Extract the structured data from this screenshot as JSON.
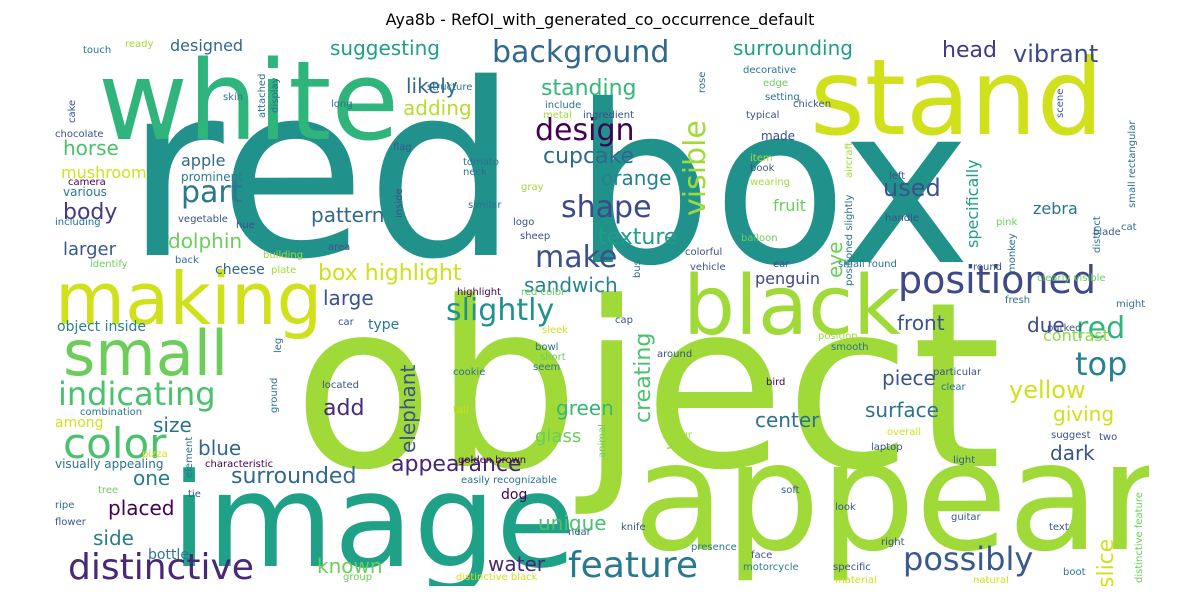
{
  "title": "Aya8b - RefOI_with_generated_co_occurrence_default",
  "words": [
    {
      "text": "red",
      "color": "#21918c"
    },
    {
      "text": "box",
      "color": "#21918c"
    },
    {
      "text": "object",
      "color": "#a0da39"
    },
    {
      "text": "image",
      "color": "#1fa187"
    },
    {
      "text": "appear",
      "color": "#a0da39"
    },
    {
      "text": "white",
      "color": "#2fb47c"
    },
    {
      "text": "stand",
      "color": "#d0e11c"
    },
    {
      "text": "black",
      "color": "#a0da39"
    },
    {
      "text": "making",
      "color": "#d0e11c"
    },
    {
      "text": "small",
      "color": "#6ccd5a"
    },
    {
      "text": "color",
      "color": "#4ac16d"
    },
    {
      "text": "indicating",
      "color": "#4ac16d"
    },
    {
      "text": "distinctive",
      "color": "#482878"
    },
    {
      "text": "positioned",
      "color": "#3e4989"
    },
    {
      "text": "possibly",
      "color": "#38598c"
    },
    {
      "text": "feature",
      "color": "#2a788e"
    },
    {
      "text": "appearance",
      "color": "#482475"
    },
    {
      "text": "background",
      "color": "#31688e"
    },
    {
      "text": "surrounded",
      "color": "#31688e"
    },
    {
      "text": "design",
      "color": "#440154"
    },
    {
      "text": "shape",
      "color": "#3e4989"
    },
    {
      "text": "slightly",
      "color": "#21918c"
    },
    {
      "text": "make",
      "color": "#3b528b"
    },
    {
      "text": "visible",
      "color": "#a0da39"
    },
    {
      "text": "top",
      "color": "#26828e"
    },
    {
      "text": "red",
      "color": "#2fb47c"
    },
    {
      "text": "part",
      "color": "#2a788e"
    },
    {
      "text": "pattern",
      "color": "#31688e"
    },
    {
      "text": "box highlight",
      "color": "#d0e11c"
    },
    {
      "text": "texture",
      "color": "#1f9e89"
    },
    {
      "text": "cupcake",
      "color": "#31688e"
    },
    {
      "text": "standing",
      "color": "#35b779"
    },
    {
      "text": "adding",
      "color": "#b5de2b"
    },
    {
      "text": "likely",
      "color": "#31688e"
    },
    {
      "text": "suggesting",
      "color": "#1f9e89"
    },
    {
      "text": "surrounding",
      "color": "#1f9e89"
    },
    {
      "text": "vibrant",
      "color": "#3e4989"
    },
    {
      "text": "head",
      "color": "#443983"
    },
    {
      "text": "orange",
      "color": "#26828e"
    },
    {
      "text": "body",
      "color": "#443983"
    },
    {
      "text": "horse",
      "color": "#4ac16d"
    },
    {
      "text": "dolphin",
      "color": "#6ccd5a"
    },
    {
      "text": "larger",
      "color": "#38598c"
    },
    {
      "text": "large",
      "color": "#3b528b"
    },
    {
      "text": "sandwich",
      "color": "#26828e"
    },
    {
      "text": "creating",
      "color": "#4ac16d"
    },
    {
      "text": "elephant",
      "color": "#3b528b"
    },
    {
      "text": "green",
      "color": "#35b779"
    },
    {
      "text": "glass",
      "color": "#6ccd5a"
    },
    {
      "text": "within",
      "color": "#a0da39"
    },
    {
      "text": "add",
      "color": "#482878"
    },
    {
      "text": "size",
      "color": "#2c728e"
    },
    {
      "text": "blue",
      "color": "#31688e"
    },
    {
      "text": "one",
      "color": "#287c8e"
    },
    {
      "text": "placed",
      "color": "#440154"
    },
    {
      "text": "side",
      "color": "#287c8e"
    },
    {
      "text": "known",
      "color": "#6ccd5a"
    },
    {
      "text": "water",
      "color": "#482475"
    },
    {
      "text": "unique",
      "color": "#4ac16d"
    },
    {
      "text": "front",
      "color": "#3b528b"
    },
    {
      "text": "due",
      "color": "#3e4989"
    },
    {
      "text": "piece",
      "color": "#3b528b"
    },
    {
      "text": "surface",
      "color": "#2c728e"
    },
    {
      "text": "yellow",
      "color": "#d0e11c"
    },
    {
      "text": "giving",
      "color": "#d0e11c"
    },
    {
      "text": "center",
      "color": "#2c728e"
    },
    {
      "text": "dark",
      "color": "#3b528b"
    },
    {
      "text": "slice",
      "color": "#d0e11c"
    },
    {
      "text": "used",
      "color": "#3b528b"
    },
    {
      "text": "eye",
      "color": "#6ccd5a"
    },
    {
      "text": "contrast",
      "color": "#90d743"
    },
    {
      "text": "designed",
      "color": "#31688e"
    },
    {
      "text": "apple",
      "color": "#31688e"
    },
    {
      "text": "prominent",
      "color": "#287c8e"
    },
    {
      "text": "mushroom",
      "color": "#d0e11c"
    },
    {
      "text": "various",
      "color": "#2a788e"
    },
    {
      "text": "cheese",
      "color": "#31688e"
    },
    {
      "text": "object inside",
      "color": "#26828e"
    },
    {
      "text": "type",
      "color": "#2a788e"
    },
    {
      "text": "penguin",
      "color": "#414487"
    },
    {
      "text": "fruit",
      "color": "#6ccd5a"
    },
    {
      "text": "specifically",
      "color": "#1f9e89"
    },
    {
      "text": "zebra",
      "color": "#2c728e"
    },
    {
      "text": "among",
      "color": "#d0e11c"
    },
    {
      "text": "visually appealing",
      "color": "#2c728e"
    },
    {
      "text": "combination",
      "color": "#2c728e"
    },
    {
      "text": "bottle",
      "color": "#2a788e"
    },
    {
      "text": "dog",
      "color": "#440154"
    },
    {
      "text": "golden brown",
      "color": "#440154"
    },
    {
      "text": "cookie",
      "color": "#2c728e"
    },
    {
      "text": "bowl",
      "color": "#2c728e"
    },
    {
      "text": "easily recognizable",
      "color": "#2c728e"
    },
    {
      "text": "knife",
      "color": "#38598c"
    },
    {
      "text": "presence",
      "color": "#2a788e"
    },
    {
      "text": "motorcycle",
      "color": "#287c8e"
    },
    {
      "text": "laptop",
      "color": "#3b528b"
    },
    {
      "text": "soft",
      "color": "#38598c"
    },
    {
      "text": "light",
      "color": "#38598c"
    },
    {
      "text": "guitar",
      "color": "#38598c"
    },
    {
      "text": "look",
      "color": "#38598c"
    },
    {
      "text": "right",
      "color": "#3b528b"
    },
    {
      "text": "natural",
      "color": "#d0e11c"
    },
    {
      "text": "text",
      "color": "#3b528b"
    },
    {
      "text": "boot",
      "color": "#2a788e"
    },
    {
      "text": "touch",
      "color": "#2a788e"
    },
    {
      "text": "ready",
      "color": "#a0da39"
    },
    {
      "text": "attached",
      "color": "#2c728e"
    },
    {
      "text": "display",
      "color": "#31688e"
    },
    {
      "text": "skin",
      "color": "#2c728e"
    },
    {
      "text": "cake",
      "color": "#3b528b"
    },
    {
      "text": "chocolate",
      "color": "#3b528b"
    },
    {
      "text": "camera",
      "color": "#440154"
    },
    {
      "text": "long",
      "color": "#2c728e"
    },
    {
      "text": "flag",
      "color": "#38598c"
    },
    {
      "text": "area",
      "color": "#3b528b"
    },
    {
      "text": "inside",
      "color": "#3b528b"
    },
    {
      "text": "structure",
      "color": "#2c728e"
    },
    {
      "text": "include",
      "color": "#2c728e"
    },
    {
      "text": "metal",
      "color": "#a0da39"
    },
    {
      "text": "ingredient",
      "color": "#3b528b"
    },
    {
      "text": "rose",
      "color": "#2c728e"
    },
    {
      "text": "decorative",
      "color": "#2c728e"
    },
    {
      "text": "edge",
      "color": "#6ccd5a"
    },
    {
      "text": "setting",
      "color": "#2c728e"
    },
    {
      "text": "chicken",
      "color": "#38598c"
    },
    {
      "text": "made",
      "color": "#3b528b"
    },
    {
      "text": "typical",
      "color": "#3b528b"
    },
    {
      "text": "scene",
      "color": "#38598c"
    },
    {
      "text": "small rectangular",
      "color": "#2c728e"
    },
    {
      "text": "aircraft",
      "color": "#a0da39"
    },
    {
      "text": "blade",
      "color": "#38598c"
    },
    {
      "text": "cat",
      "color": "#2c728e"
    },
    {
      "text": "tomato",
      "color": "#2c728e"
    },
    {
      "text": "neck",
      "color": "#2c728e"
    },
    {
      "text": "gray",
      "color": "#a0da39"
    },
    {
      "text": "logo",
      "color": "#3b528b"
    },
    {
      "text": "similar",
      "color": "#2c728e"
    },
    {
      "text": "item",
      "color": "#a0da39"
    },
    {
      "text": "book",
      "color": "#3b528b"
    },
    {
      "text": "wearing",
      "color": "#a0da39"
    },
    {
      "text": "balloon",
      "color": "#6ccd5a"
    },
    {
      "text": "positioned slightly",
      "color": "#2c728e"
    },
    {
      "text": "left",
      "color": "#3b528b"
    },
    {
      "text": "handle",
      "color": "#3b528b"
    },
    {
      "text": "pink",
      "color": "#6ccd5a"
    },
    {
      "text": "distinct",
      "color": "#2c728e"
    },
    {
      "text": "monkey",
      "color": "#2c728e"
    },
    {
      "text": "including",
      "color": "#2c728e"
    },
    {
      "text": "vegetable",
      "color": "#3b528b"
    },
    {
      "text": "hue",
      "color": "#3b528b"
    },
    {
      "text": "identify",
      "color": "#6ccd5a"
    },
    {
      "text": "back",
      "color": "#2c728e"
    },
    {
      "text": "building",
      "color": "#a0da39"
    },
    {
      "text": "plate",
      "color": "#a0da39"
    },
    {
      "text": "sheep",
      "color": "#3b528b"
    },
    {
      "text": "colorful",
      "color": "#3b528b"
    },
    {
      "text": "bus",
      "color": "#2c728e"
    },
    {
      "text": "vehicle",
      "color": "#3b528b"
    },
    {
      "text": "ear",
      "color": "#3b528b"
    },
    {
      "text": "small round",
      "color": "#2c728e"
    },
    {
      "text": "round",
      "color": "#3b528b"
    },
    {
      "text": "clearly visible",
      "color": "#6ccd5a"
    },
    {
      "text": "fresh",
      "color": "#2c728e"
    },
    {
      "text": "highlight",
      "color": "#440154"
    },
    {
      "text": "red color",
      "color": "#6ccd5a"
    },
    {
      "text": "might",
      "color": "#2c728e"
    },
    {
      "text": "parked",
      "color": "#3b528b"
    },
    {
      "text": "car",
      "color": "#3b528b"
    },
    {
      "text": "sleek",
      "color": "#d0e11c"
    },
    {
      "text": "cap",
      "color": "#3b528b"
    },
    {
      "text": "position",
      "color": "#a0da39"
    },
    {
      "text": "smooth",
      "color": "#2c728e"
    },
    {
      "text": "leg",
      "color": "#2c728e"
    },
    {
      "text": "short",
      "color": "#6ccd5a"
    },
    {
      "text": "seem",
      "color": "#2c728e"
    },
    {
      "text": "around",
      "color": "#3b528b"
    },
    {
      "text": "ground",
      "color": "#2c728e"
    },
    {
      "text": "located",
      "color": "#3b528b"
    },
    {
      "text": "bird",
      "color": "#440154"
    },
    {
      "text": "clear",
      "color": "#2c728e"
    },
    {
      "text": "particular",
      "color": "#3b528b"
    },
    {
      "text": "tail",
      "color": "#d0e11c"
    },
    {
      "text": "animal",
      "color": "#6ccd5a"
    },
    {
      "text": "fur",
      "color": "#a0da39"
    },
    {
      "text": "overall",
      "color": "#d0e11c"
    },
    {
      "text": "suggest",
      "color": "#3b528b"
    },
    {
      "text": "two",
      "color": "#3b528b"
    },
    {
      "text": "pizza",
      "color": "#d0e11c"
    },
    {
      "text": "element",
      "color": "#2c728e"
    },
    {
      "text": "characteristic",
      "color": "#440154"
    },
    {
      "text": "tree",
      "color": "#6ccd5a"
    },
    {
      "text": "tie",
      "color": "#3b528b"
    },
    {
      "text": "ripe",
      "color": "#2c728e"
    },
    {
      "text": "flower",
      "color": "#3b528b"
    },
    {
      "text": "near",
      "color": "#3b528b"
    },
    {
      "text": "group",
      "color": "#6ccd5a"
    },
    {
      "text": "distinctive black",
      "color": "#d0e11c"
    },
    {
      "text": "face",
      "color": "#3b528b"
    },
    {
      "text": "specific",
      "color": "#3b528b"
    },
    {
      "text": "material",
      "color": "#d0e11c"
    },
    {
      "text": "distinctive feature",
      "color": "#6ccd5a"
    }
  ]
}
